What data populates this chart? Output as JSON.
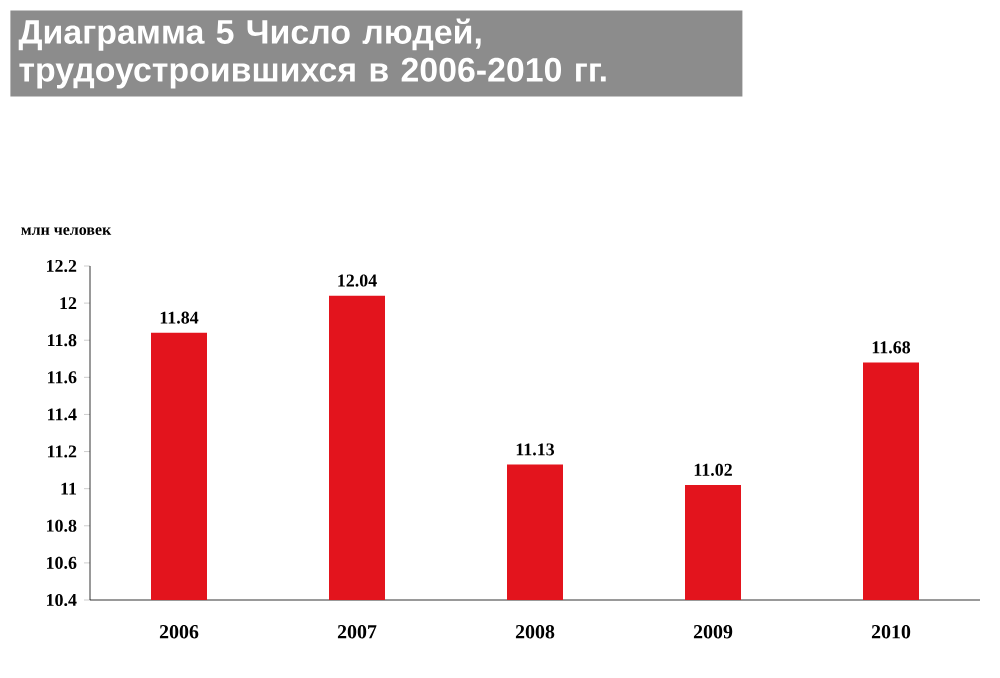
{
  "chart_data": {
    "type": "bar",
    "title": "Диаграмма 5 Число людей, трудоустроившихся в 2006-2010 гг.",
    "ylabel": "млн человек",
    "categories": [
      "2006",
      "2007",
      "2008",
      "2009",
      "2010"
    ],
    "values": [
      11.84,
      12.04,
      11.13,
      11.02,
      11.68
    ],
    "color": "#e3141d",
    "ylim": [
      10.4,
      12.2
    ],
    "yticks": [
      10.4,
      10.6,
      10.8,
      11,
      11.2,
      11.4,
      11.6,
      11.8,
      12,
      12.2
    ],
    "data_labels": true
  }
}
